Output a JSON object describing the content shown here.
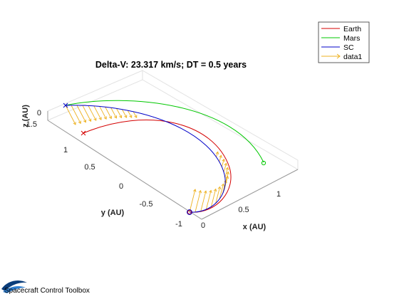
{
  "chart_data": {
    "type": "line",
    "title": "Delta-V: 23.317 km/s; DT = 0.5 years",
    "xlabel": "x (AU)",
    "ylabel": "y (AU)",
    "zlabel": "z (AU)",
    "x_ticks": [
      "0",
      "0.5",
      "1"
    ],
    "y_ticks": [
      "1",
      "0.5",
      "0",
      "-0.5",
      "-1"
    ],
    "z_ticks": [
      "0",
      "-1.5"
    ],
    "xlim": [
      -0.05,
      1.5
    ],
    "ylim": [
      -1.05,
      1.4
    ],
    "grid": true,
    "legend_position": "top-right",
    "series": [
      {
        "name": "Earth",
        "color": "#d40000",
        "kind": "orbit-arc"
      },
      {
        "name": "Mars",
        "color": "#00c800",
        "kind": "orbit-arc"
      },
      {
        "name": "SC",
        "color": "#0000c8",
        "kind": "transfer-trajectory"
      },
      {
        "name": "data1",
        "color": "#edb120",
        "kind": "thrust-vectors"
      }
    ]
  },
  "footer": {
    "logo_text": "Spacecraft Control Toolbox",
    "logo_colors": [
      "#0a3d7a",
      "#2f7fd0"
    ]
  }
}
